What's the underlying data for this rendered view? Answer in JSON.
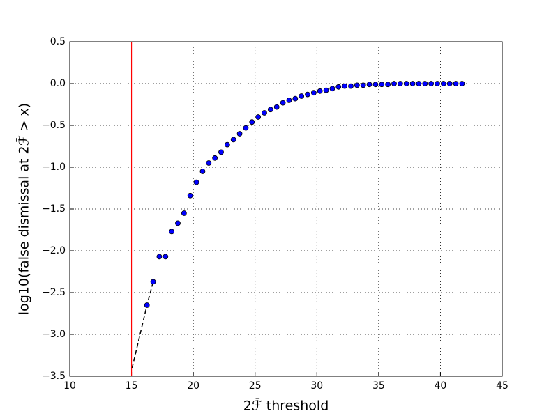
{
  "chart_data": {
    "type": "scatter",
    "xlabel": "2ℱ̄ threshold",
    "ylabel": "log10(false dismissal at 2ℱ̄ > x)",
    "xlim": [
      10,
      45
    ],
    "ylim": [
      -3.5,
      0.5
    ],
    "xticks": [
      10,
      15,
      20,
      25,
      30,
      35,
      40,
      45
    ],
    "yticks": [
      0.5,
      {
        "value": 0,
        "label": "0.0"
      },
      {
        "value": -0.5,
        "label": "−0.5"
      },
      {
        "value": -1,
        "label": "−1.0"
      },
      {
        "value": -1.5,
        "label": "−1.5"
      },
      {
        "value": -2,
        "label": "−2.0"
      },
      {
        "value": -2.5,
        "label": "−2.5"
      },
      {
        "value": -3,
        "label": "−3.0"
      },
      {
        "value": -3.5,
        "label": "−3.5"
      }
    ],
    "grid": true,
    "vline": {
      "x": 15,
      "color": "#ff0000"
    },
    "series": [
      {
        "style": "dashed-line",
        "color": "#000000",
        "x": [
          15.05,
          16.25,
          16.75
        ],
        "values": [
          -3.4,
          -2.65,
          -2.37
        ]
      },
      {
        "style": "markers",
        "color": "#0000ff",
        "x": [
          16.25,
          16.75,
          17.25,
          17.75,
          18.25,
          18.75,
          19.25,
          19.75,
          20.25,
          20.75,
          21.25,
          21.75,
          22.25,
          22.75,
          23.25,
          23.75,
          24.25,
          24.75,
          25.25,
          25.75,
          26.25,
          26.75,
          27.25,
          27.75,
          28.25,
          28.75,
          29.25,
          29.75,
          30.25,
          30.75,
          31.25,
          31.75,
          32.25,
          32.75,
          33.25,
          33.75,
          34.25,
          34.75,
          35.25,
          35.75,
          36.25,
          36.75,
          37.25,
          37.75,
          38.25,
          38.75,
          39.25,
          39.75,
          40.25,
          40.75,
          41.25,
          41.75
        ],
        "values": [
          -2.65,
          -2.37,
          -2.07,
          -2.07,
          -1.77,
          -1.67,
          -1.55,
          -1.34,
          -1.18,
          -1.05,
          -0.95,
          -0.89,
          -0.82,
          -0.73,
          -0.67,
          -0.6,
          -0.53,
          -0.46,
          -0.4,
          -0.35,
          -0.31,
          -0.28,
          -0.23,
          -0.2,
          -0.18,
          -0.15,
          -0.13,
          -0.11,
          -0.09,
          -0.08,
          -0.06,
          -0.04,
          -0.03,
          -0.03,
          -0.02,
          -0.02,
          -0.01,
          -0.01,
          -0.01,
          -0.01,
          0,
          0,
          0,
          0,
          0,
          0,
          0,
          0,
          0,
          0,
          0,
          0
        ]
      }
    ]
  }
}
